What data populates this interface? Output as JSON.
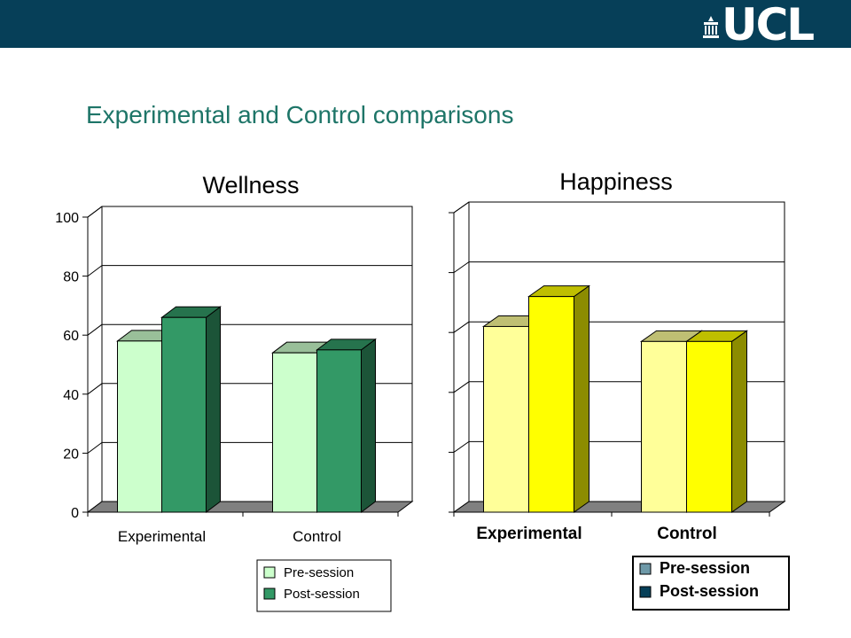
{
  "header": {
    "logo_text": "UCL",
    "colors": {
      "bar": "#063f58",
      "logo": "#ffffff"
    },
    "logo_icon": "portico-icon"
  },
  "slide": {
    "title": "Experimental and Control comparisons",
    "title_color": "#1e7568"
  },
  "chart_data": [
    {
      "type": "bar",
      "title": "Wellness",
      "categories": [
        "Experimental",
        "Control"
      ],
      "series": [
        {
          "name": "Pre-session",
          "values": [
            58,
            54
          ]
        },
        {
          "name": "Post-session",
          "values": [
            66,
            55
          ]
        }
      ],
      "ylim": [
        0,
        100
      ],
      "yticks": [
        "0",
        "20",
        "40",
        "60",
        "80",
        "100"
      ],
      "grid": true,
      "legend": "bottom-center",
      "colors": [
        "#ccffcc",
        "#339966"
      ],
      "legend_swatch_colors": [
        "#ccffcc",
        "#339966"
      ],
      "style": "3d"
    },
    {
      "type": "bar",
      "title": "Happiness",
      "categories": [
        "Experimental",
        "Control"
      ],
      "series": [
        {
          "name": "Pre-session",
          "values": [
            62,
            57
          ]
        },
        {
          "name": "Post-session",
          "values": [
            72,
            57
          ]
        }
      ],
      "ylim": [
        0,
        100
      ],
      "yticks": [],
      "grid": true,
      "legend": "bottom-right",
      "colors": [
        "#ffff99",
        "#ffff00"
      ],
      "legend_swatch_colors": [
        "#6e99a8",
        "#063f58"
      ],
      "style": "3d"
    }
  ]
}
